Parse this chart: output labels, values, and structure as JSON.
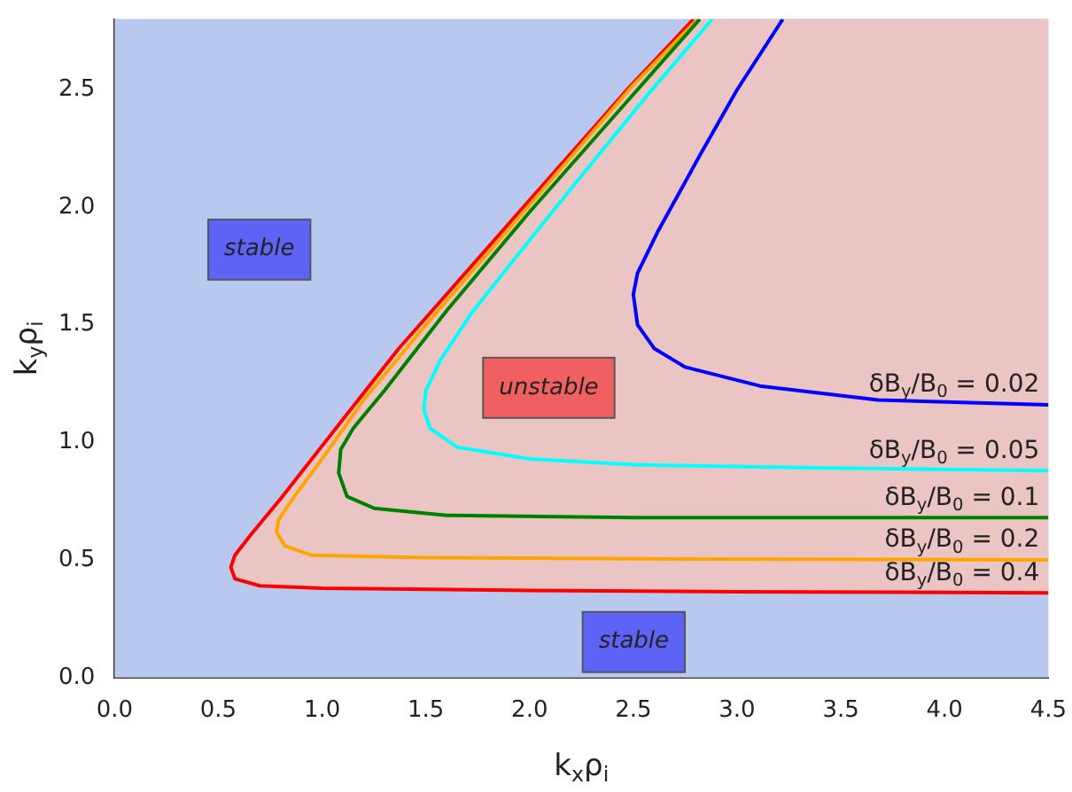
{
  "chart_data": {
    "type": "line",
    "xlabel": "k$_{x}$ρ$_{i}$",
    "ylabel": "k$_{y}$ρ$_{i}$",
    "xlim": [
      0,
      4.5
    ],
    "ylim": [
      0,
      2.8
    ],
    "xticks": [
      {
        "value": 0,
        "label": "0.0"
      },
      {
        "value": 0.5,
        "label": "0.5"
      },
      {
        "value": 1,
        "label": "1.0"
      },
      {
        "value": 1.5,
        "label": "1.5"
      },
      {
        "value": 2,
        "label": "2.0"
      },
      {
        "value": 2.5,
        "label": "2.5"
      },
      {
        "value": 3,
        "label": "3.0"
      },
      {
        "value": 3.5,
        "label": "3.5"
      },
      {
        "value": 4,
        "label": "4.0"
      },
      {
        "value": 4.5,
        "label": "4.5"
      }
    ],
    "yticks": [
      {
        "value": 0,
        "label": "0.0"
      },
      {
        "value": 0.5,
        "label": "0.5"
      },
      {
        "value": 1,
        "label": "1.0"
      },
      {
        "value": 1.5,
        "label": "1.5"
      },
      {
        "value": 2,
        "label": "2.0"
      },
      {
        "value": 2.5,
        "label": "2.5"
      }
    ],
    "grid": false,
    "bands": [
      {
        "axis": "y",
        "from": 0,
        "to": 2.8,
        "color": "#b9c8ee"
      }
    ],
    "legend": false,
    "marker": "none",
    "series": [
      {
        "name": "δB$_{y}$/B$_{0}$ = 0.02",
        "color": "#0000ff",
        "x": [
          3.22,
          3.0,
          2.82,
          2.62,
          2.52,
          2.5,
          2.52,
          2.6,
          2.75,
          3.11,
          3.68,
          4.5
        ],
        "values": [
          2.8,
          2.5,
          2.22,
          1.9,
          1.72,
          1.63,
          1.5,
          1.4,
          1.32,
          1.24,
          1.18,
          1.16
        ]
      },
      {
        "name": "δB$_{y}$/B$_{0}$ = 0.05",
        "color": "#00ffff",
        "x": [
          2.88,
          2.58,
          2.2,
          1.9,
          1.72,
          1.57,
          1.5,
          1.49,
          1.52,
          1.65,
          2.0,
          2.5,
          3.5,
          4.5
        ],
        "values": [
          2.8,
          2.49,
          2.08,
          1.75,
          1.55,
          1.35,
          1.22,
          1.14,
          1.06,
          0.98,
          0.93,
          0.905,
          0.89,
          0.88
        ]
      },
      {
        "name": "δB$_{y}$/B$_{0}$ = 0.1",
        "color": "#008000",
        "x": [
          2.82,
          2.5,
          2.0,
          1.6,
          1.3,
          1.15,
          1.09,
          1.08,
          1.12,
          1.25,
          1.6,
          2.5,
          4.5
        ],
        "values": [
          2.8,
          2.48,
          1.98,
          1.56,
          1.22,
          1.06,
          0.97,
          0.87,
          0.77,
          0.72,
          0.69,
          0.68,
          0.68
        ]
      },
      {
        "name": "δB$_{y}$/B$_{0}$ = 0.2",
        "color": "#ffa500",
        "x": [
          2.81,
          2.5,
          2.0,
          1.5,
          1.2,
          1.0,
          0.85,
          0.79,
          0.78,
          0.82,
          0.95,
          1.5,
          2.5,
          4.5
        ],
        "values": [
          2.8,
          2.52,
          2.01,
          1.5,
          1.18,
          0.93,
          0.75,
          0.67,
          0.62,
          0.56,
          0.52,
          0.51,
          0.505,
          0.5
        ]
      },
      {
        "name": "δB$_{y}$/B$_{0}$ = 0.4",
        "color": "#ff0000",
        "x": [
          2.79,
          2.47,
          1.97,
          1.69,
          1.37,
          1.12,
          0.8,
          0.65,
          0.58,
          0.56,
          0.58,
          0.7,
          1.0,
          2.0,
          3.0,
          4.5
        ],
        "values": [
          2.8,
          2.5,
          2.0,
          1.72,
          1.4,
          1.12,
          0.76,
          0.6,
          0.52,
          0.47,
          0.42,
          0.39,
          0.38,
          0.37,
          0.365,
          0.36
        ]
      }
    ],
    "annotations": [
      "stable",
      "unstable",
      "stable"
    ]
  }
}
